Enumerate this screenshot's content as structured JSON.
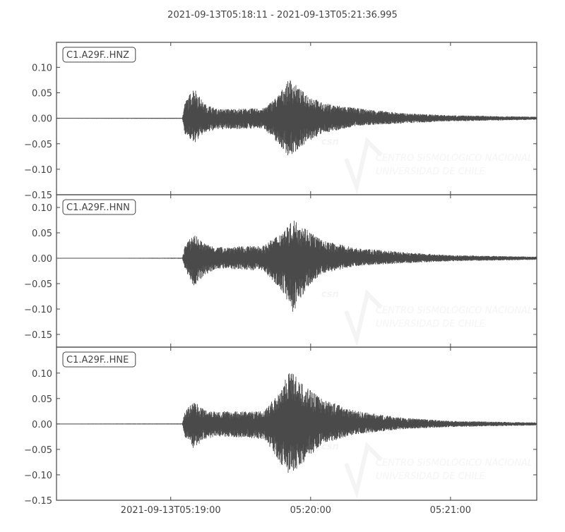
{
  "chart_data": {
    "type": "line",
    "title": "2021-09-13T05:18:11  -  2021-09-13T05:21:36.995",
    "x_range": [
      "05:18:11",
      "05:21:36.995"
    ],
    "x_ticks": [
      {
        "t": "05:19:00",
        "label": "2021-09-13T05:19:00"
      },
      {
        "t": "05:20:00",
        "label": "05:20:00"
      },
      {
        "t": "05:21:00",
        "label": "05:21:00"
      }
    ],
    "grid": false,
    "line_color": "#4a4a4a",
    "panels": [
      {
        "label": "C1.A29F..HNZ",
        "ylim": [
          -0.15,
          0.149
        ],
        "y_ticks": [
          {
            "v": 0.1,
            "label": "0.10"
          },
          {
            "v": 0.05,
            "label": "0.05"
          },
          {
            "v": 0,
            "label": "0.00"
          },
          {
            "v": -0.05,
            "label": "−0.05"
          },
          {
            "v": -0.1,
            "label": "−0.10"
          },
          {
            "v": -0.15,
            "label": "−0.15"
          }
        ],
        "envelope": [
          [
            "05:18:11",
            0.0005,
            -0.0005
          ],
          [
            "05:19:05",
            0.001,
            -0.001
          ],
          [
            "05:19:06",
            0.03,
            -0.03
          ],
          [
            "05:19:10",
            0.062,
            -0.05
          ],
          [
            "05:19:14",
            0.03,
            -0.03
          ],
          [
            "05:19:20",
            0.018,
            -0.022
          ],
          [
            "05:19:40",
            0.02,
            -0.02
          ],
          [
            "05:19:46",
            0.045,
            -0.05
          ],
          [
            "05:19:51",
            0.078,
            -0.077
          ],
          [
            "05:19:56",
            0.055,
            -0.055
          ],
          [
            "05:20:05",
            0.03,
            -0.03
          ],
          [
            "05:20:20",
            0.02,
            -0.015
          ],
          [
            "05:20:40",
            0.01,
            -0.01
          ],
          [
            "05:21:00",
            0.006,
            -0.006
          ],
          [
            "05:21:36.995",
            0.003,
            -0.003
          ]
        ]
      },
      {
        "label": "C1.A29F..HNN",
        "ylim": [
          -0.175,
          0.125
        ],
        "y_ticks": [
          {
            "v": 0.1,
            "label": "0.10"
          },
          {
            "v": 0.05,
            "label": "0.05"
          },
          {
            "v": 0,
            "label": "0.00"
          },
          {
            "v": -0.05,
            "label": "−0.05"
          },
          {
            "v": -0.1,
            "label": "−0.10"
          },
          {
            "v": -0.15,
            "label": "−0.15"
          }
        ],
        "envelope": [
          [
            "05:18:11",
            0.0005,
            -0.0005
          ],
          [
            "05:19:05",
            0.001,
            -0.001
          ],
          [
            "05:19:06",
            0.025,
            -0.02
          ],
          [
            "05:19:10",
            0.048,
            -0.057
          ],
          [
            "05:19:14",
            0.03,
            -0.035
          ],
          [
            "05:19:20",
            0.022,
            -0.02
          ],
          [
            "05:19:40",
            0.025,
            -0.025
          ],
          [
            "05:19:47",
            0.05,
            -0.06
          ],
          [
            "05:19:53",
            0.076,
            -0.111
          ],
          [
            "05:19:58",
            0.06,
            -0.06
          ],
          [
            "05:20:05",
            0.035,
            -0.03
          ],
          [
            "05:20:20",
            0.02,
            -0.015
          ],
          [
            "05:20:40",
            0.012,
            -0.01
          ],
          [
            "05:21:00",
            0.006,
            -0.006
          ],
          [
            "05:21:36.995",
            0.003,
            -0.003
          ]
        ]
      },
      {
        "label": "C1.A29F..HNE",
        "ylim": [
          -0.15,
          0.151
        ],
        "y_ticks": [
          {
            "v": 0.1,
            "label": "0.10"
          },
          {
            "v": 0.05,
            "label": "0.05"
          },
          {
            "v": 0,
            "label": "0.00"
          },
          {
            "v": -0.05,
            "label": "−0.05"
          },
          {
            "v": -0.1,
            "label": "−0.10"
          },
          {
            "v": -0.15,
            "label": "−0.15"
          }
        ],
        "envelope": [
          [
            "05:18:11",
            0.0005,
            -0.0005
          ],
          [
            "05:19:05",
            0.001,
            -0.001
          ],
          [
            "05:19:06",
            0.025,
            -0.025
          ],
          [
            "05:19:10",
            0.045,
            -0.05
          ],
          [
            "05:19:14",
            0.03,
            -0.03
          ],
          [
            "05:19:20",
            0.025,
            -0.025
          ],
          [
            "05:19:40",
            0.025,
            -0.03
          ],
          [
            "05:19:46",
            0.06,
            -0.07
          ],
          [
            "05:19:51",
            0.108,
            -0.1
          ],
          [
            "05:19:56",
            0.08,
            -0.08
          ],
          [
            "05:20:05",
            0.05,
            -0.04
          ],
          [
            "05:20:20",
            0.025,
            -0.02
          ],
          [
            "05:20:40",
            0.012,
            -0.01
          ],
          [
            "05:21:00",
            0.006,
            -0.006
          ],
          [
            "05:21:36.995",
            0.003,
            -0.003
          ]
        ]
      }
    ]
  },
  "watermark": {
    "logo_text": "csn",
    "line1": "CENTRO SISMOLÓGICO NACIONAL",
    "line2": "UNIVERSIDAD DE CHILE"
  }
}
